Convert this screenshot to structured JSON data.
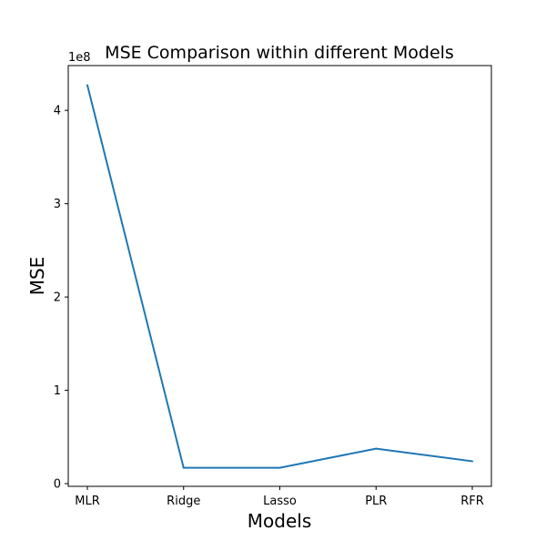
{
  "chart_data": {
    "type": "line",
    "title": "MSE Comparison within different Models",
    "xlabel": "Models",
    "ylabel": "MSE",
    "y_offset_text": "1e8",
    "categories": [
      "MLR",
      "Ridge",
      "Lasso",
      "PLR",
      "RFR"
    ],
    "series": [
      {
        "values": [
          427000000,
          17000000,
          17000000,
          37500000,
          24000000
        ],
        "color": "#1f77b4"
      }
    ],
    "yticks": [
      0,
      1,
      2,
      3,
      4
    ],
    "ytick_labels": [
      "0",
      "1",
      "2",
      "3",
      "4"
    ],
    "ylim": [
      -2900000,
      448000000
    ],
    "grid": false,
    "legend": "none"
  }
}
